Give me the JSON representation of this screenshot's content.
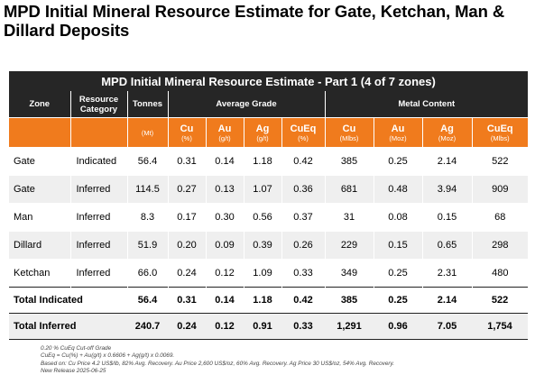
{
  "page_title": "MPD Initial Mineral Resource Estimate for Gate, Ketchan, Man & Dillard Deposits",
  "table": {
    "title": "MPD Initial Mineral Resource Estimate - Part 1 (4 of 7 zones)",
    "headers": {
      "zone": "Zone",
      "category": "Resource Category",
      "tonnes": "Tonnes",
      "average_grade": "Average Grade",
      "metal_content": "Metal Content"
    },
    "units": [
      {
        "name": "",
        "unit": ""
      },
      {
        "name": "",
        "unit": ""
      },
      {
        "name": "",
        "unit": "(Mt)"
      },
      {
        "name": "Cu",
        "unit": "(%)"
      },
      {
        "name": "Au",
        "unit": "(g/t)"
      },
      {
        "name": "Ag",
        "unit": "(g/t)"
      },
      {
        "name": "CuEq",
        "unit": "(%)"
      },
      {
        "name": "Cu",
        "unit": "(Mlbs)"
      },
      {
        "name": "Au",
        "unit": "(Moz)"
      },
      {
        "name": "Ag",
        "unit": "(Moz)"
      },
      {
        "name": "CuEq",
        "unit": "(Mlbs)"
      }
    ],
    "rows": [
      [
        "Gate",
        "Indicated",
        "56.4",
        "0.31",
        "0.14",
        "1.18",
        "0.42",
        "385",
        "0.25",
        "2.14",
        "522"
      ],
      [
        "Gate",
        "Inferred",
        "114.5",
        "0.27",
        "0.13",
        "1.07",
        "0.36",
        "681",
        "0.48",
        "3.94",
        "909"
      ],
      [
        "Man",
        "Inferred",
        "8.3",
        "0.17",
        "0.30",
        "0.56",
        "0.37",
        "31",
        "0.08",
        "0.15",
        "68"
      ],
      [
        "Dillard",
        "Inferred",
        "51.9",
        "0.20",
        "0.09",
        "0.39",
        "0.26",
        "229",
        "0.15",
        "0.65",
        "298"
      ],
      [
        "Ketchan",
        "Inferred",
        "66.0",
        "0.24",
        "0.12",
        "1.09",
        "0.33",
        "349",
        "0.25",
        "2.31",
        "480"
      ]
    ],
    "totals": [
      [
        "Total Indicated",
        "56.4",
        "0.31",
        "0.14",
        "1.18",
        "0.42",
        "385",
        "0.25",
        "2.14",
        "522"
      ],
      [
        "Total Inferred",
        "240.7",
        "0.24",
        "0.12",
        "0.91",
        "0.33",
        "1,291",
        "0.96",
        "7.05",
        "1,754"
      ]
    ]
  },
  "notes": [
    "0.20 % CuEq Cut-off Grade",
    "CuEq = Cu(%) + Au(g/t) x 0.6606 + Ag(g/t) x 0.0069.",
    "Based on: Cu Price 4.2 US$/lb, 82% Avg. Recovery. Au Price 2,600 US$/oz, 60% Avg. Recovery. Ag Price 30 US$/oz, 54% Avg. Recovery.",
    "New Release 2025-06-25"
  ],
  "colors": {
    "header_bg": "#262626",
    "accent_orange": "#f07b1d",
    "stripe": "#efefef"
  }
}
